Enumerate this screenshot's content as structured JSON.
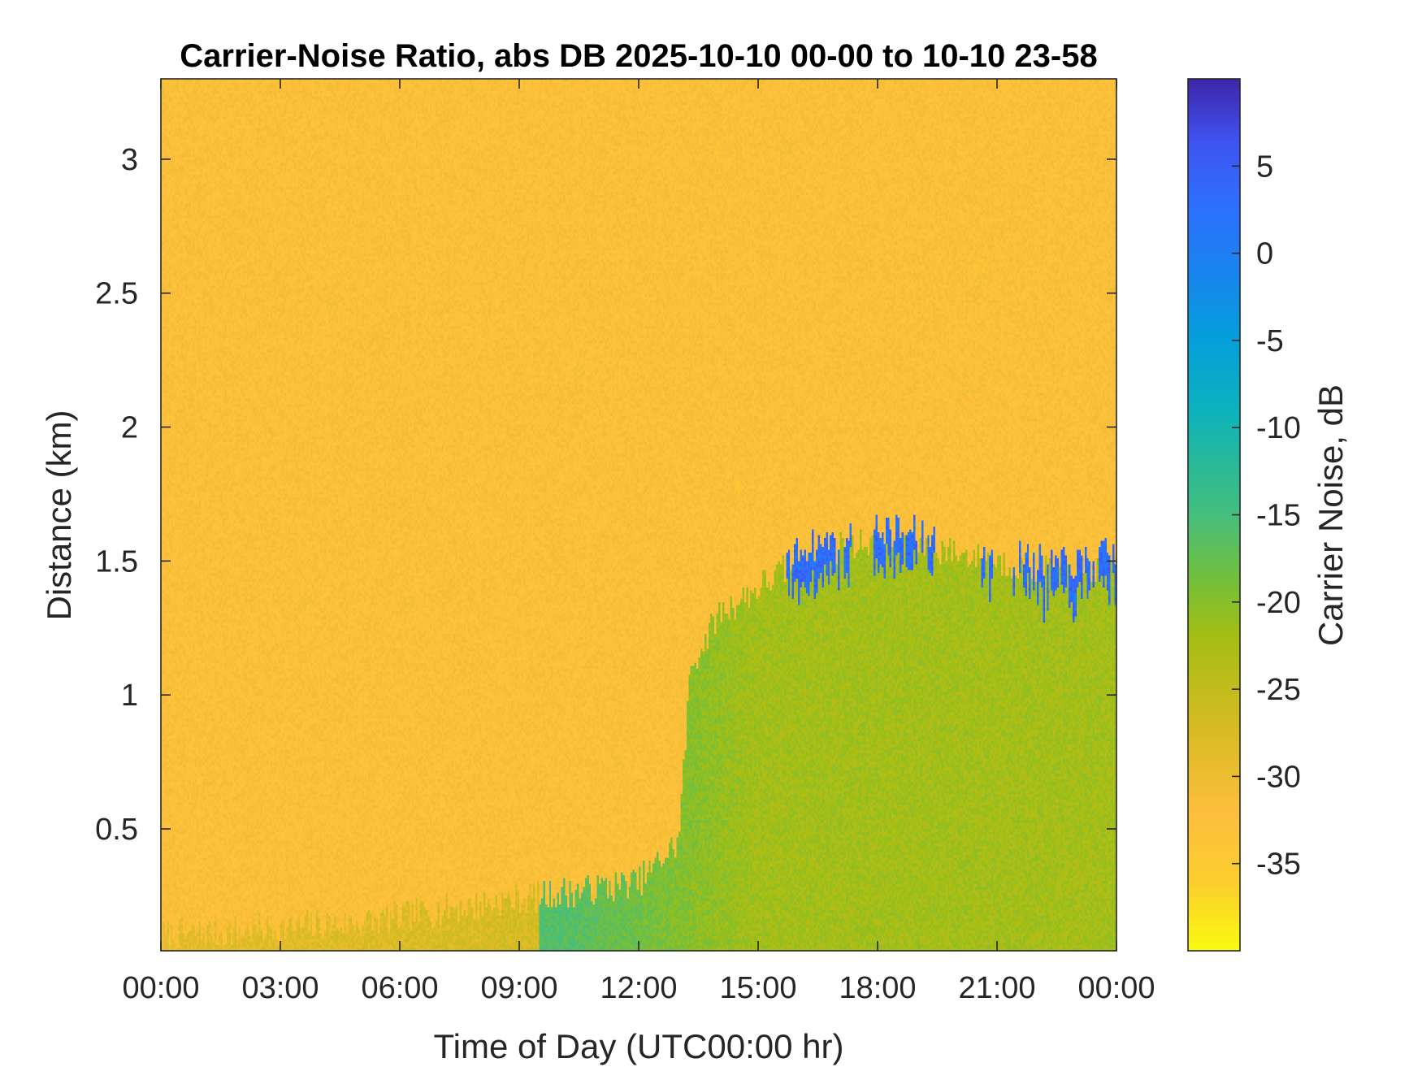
{
  "chart_data": {
    "type": "heatmap",
    "title": "Carrier-Noise Ratio, abs DB 2025-10-10 00-00 to 10-10 23-58",
    "xlabel": "Time of Day (UTC00:00 hr)",
    "ylabel": "Distance (km)",
    "colorbar_label": "Carrier Noise, dB",
    "x_range_hours": [
      0,
      24
    ],
    "x_ticks_hours": [
      0,
      3,
      6,
      9,
      12,
      15,
      18,
      21,
      24
    ],
    "x_tick_labels": [
      "00:00",
      "03:00",
      "06:00",
      "09:00",
      "12:00",
      "15:00",
      "18:00",
      "21:00",
      "00:00"
    ],
    "y_range_km": [
      0.045,
      3.3
    ],
    "y_ticks_km": [
      0.5,
      1,
      1.5,
      2,
      2.5,
      3
    ],
    "y_tick_labels": [
      "0.5",
      "1",
      "1.5",
      "2",
      "2.5",
      "3"
    ],
    "color_range_db": [
      -40,
      10
    ],
    "colorbar_ticks_db": [
      -35,
      -30,
      -25,
      -20,
      -15,
      -10,
      -5,
      0,
      5
    ],
    "colorbar_tick_labels": [
      "-35",
      "-30",
      "-25",
      "-20",
      "-15",
      "-10",
      "-5",
      "0",
      "5"
    ],
    "colormap": "parula (reversed: yellow at minimum, dark blue at maximum)",
    "background_level_db": -32,
    "features": {
      "boundary_layer_top_km": [
        {
          "hour": 0,
          "km": 0.1
        },
        {
          "hour": 5,
          "km": 0.15
        },
        {
          "hour": 9.5,
          "km": 0.25
        },
        {
          "hour": 12,
          "km": 0.3
        },
        {
          "hour": 13,
          "km": 0.45
        },
        {
          "hour": 13.3,
          "km": 1.1
        },
        {
          "hour": 14,
          "km": 1.3
        },
        {
          "hour": 15,
          "km": 1.4
        },
        {
          "hour": 16,
          "km": 1.5
        },
        {
          "hour": 17,
          "km": 1.55
        },
        {
          "hour": 18,
          "km": 1.58
        },
        {
          "hour": 19,
          "km": 1.57
        },
        {
          "hour": 20,
          "km": 1.53
        },
        {
          "hour": 21,
          "km": 1.5
        },
        {
          "hour": 22,
          "km": 1.47
        },
        {
          "hour": 23,
          "km": 1.45
        },
        {
          "hour": 24,
          "km": 1.5
        }
      ],
      "mixed_layer_level_db": -22,
      "cloud_top_level_db": 3,
      "cloud_segments": [
        {
          "start_hour": 15.7,
          "end_hour": 17.4
        },
        {
          "start_hour": 17.9,
          "end_hour": 19.5
        },
        {
          "start_hour": 20.5,
          "end_hour": 20.9
        },
        {
          "start_hour": 21.4,
          "end_hour": 24
        }
      ]
    }
  }
}
